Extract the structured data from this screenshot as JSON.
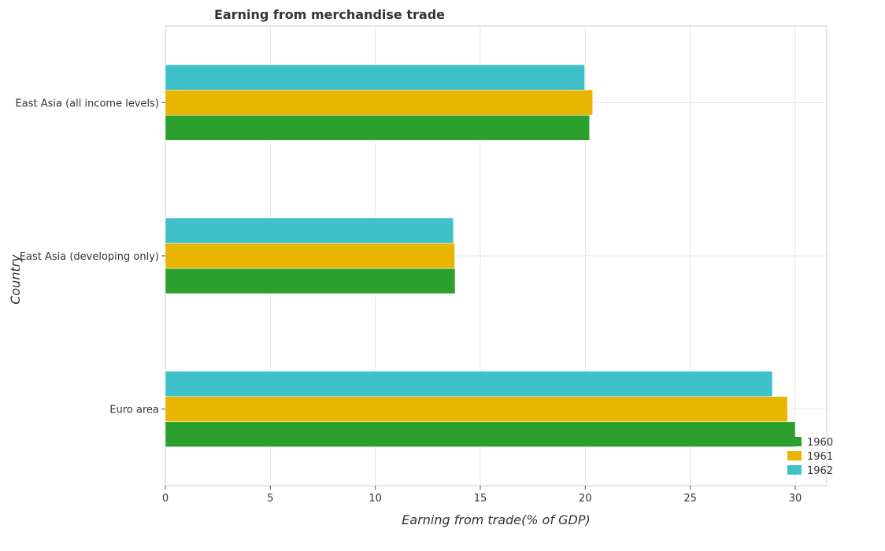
{
  "chart_data": {
    "type": "bar",
    "orientation": "horizontal",
    "title": "Earning from merchandise trade",
    "xlabel": "Earning from trade(% of GDP)",
    "ylabel": "Country",
    "xlim": [
      0,
      31.5
    ],
    "xticks": [
      0,
      5,
      10,
      15,
      20,
      25,
      30
    ],
    "categories": [
      "East Asia (all income levels)",
      "East Asia (developing only)",
      "Euro area"
    ],
    "series": [
      {
        "name": "1960",
        "color": "#2ca02c",
        "values": [
          20.2,
          13.8,
          30.0
        ]
      },
      {
        "name": "1961",
        "color": "#e8b500",
        "values": [
          20.35,
          13.78,
          29.63
        ]
      },
      {
        "name": "1962",
        "color": "#3fc1c9",
        "values": [
          19.97,
          13.72,
          28.91
        ]
      }
    ],
    "grid": true,
    "legend_position": "bottom-right"
  }
}
